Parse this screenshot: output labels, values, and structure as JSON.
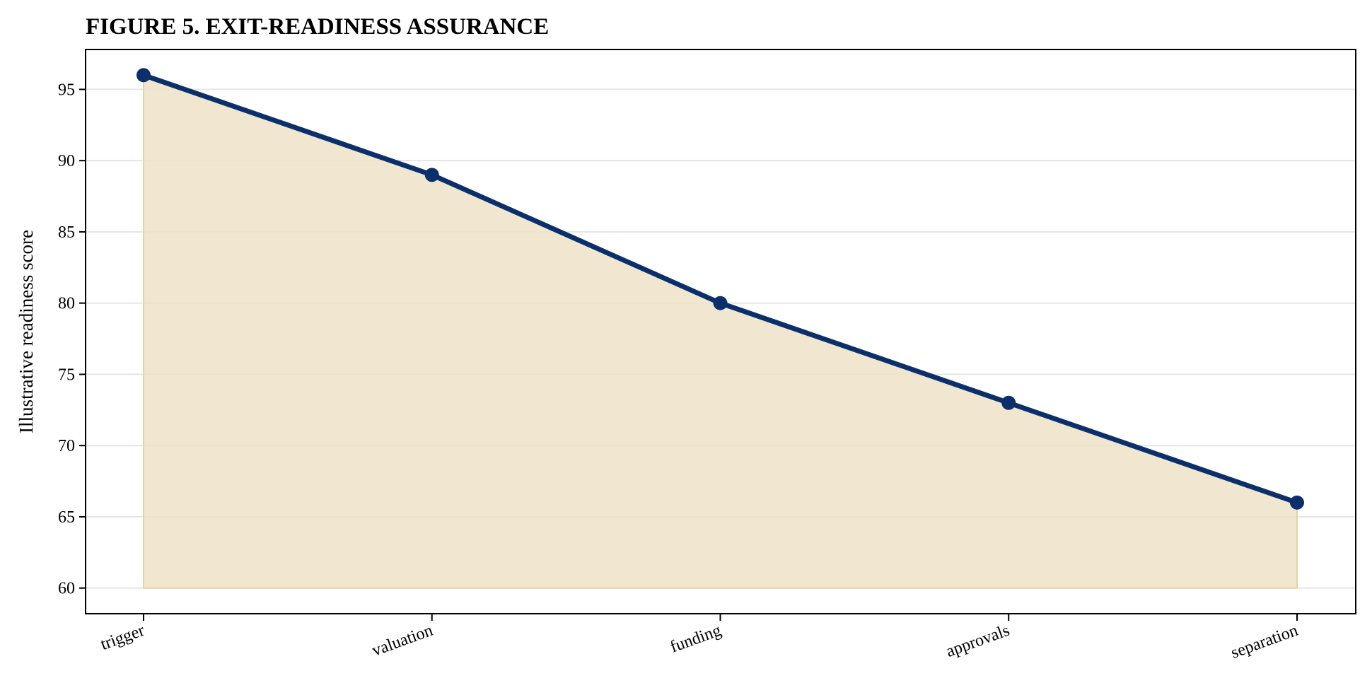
{
  "chart_data": {
    "type": "area",
    "title": "FIGURE 5. EXIT-READINESS ASSURANCE",
    "xlabel": "",
    "ylabel": "Illustrative readiness score",
    "categories": [
      "trigger",
      "valuation",
      "funding",
      "approvals",
      "separation"
    ],
    "series": [
      {
        "values": [
          96,
          89,
          80,
          73,
          66
        ],
        "color": "#0b2f6b",
        "fill_color": "#efe3c9"
      }
    ],
    "yticks": [
      60,
      65,
      70,
      75,
      80,
      85,
      90,
      95
    ],
    "ylim": [
      58.2,
      97.8
    ],
    "fill_baseline": 60,
    "grid": "y",
    "legend": "none"
  }
}
